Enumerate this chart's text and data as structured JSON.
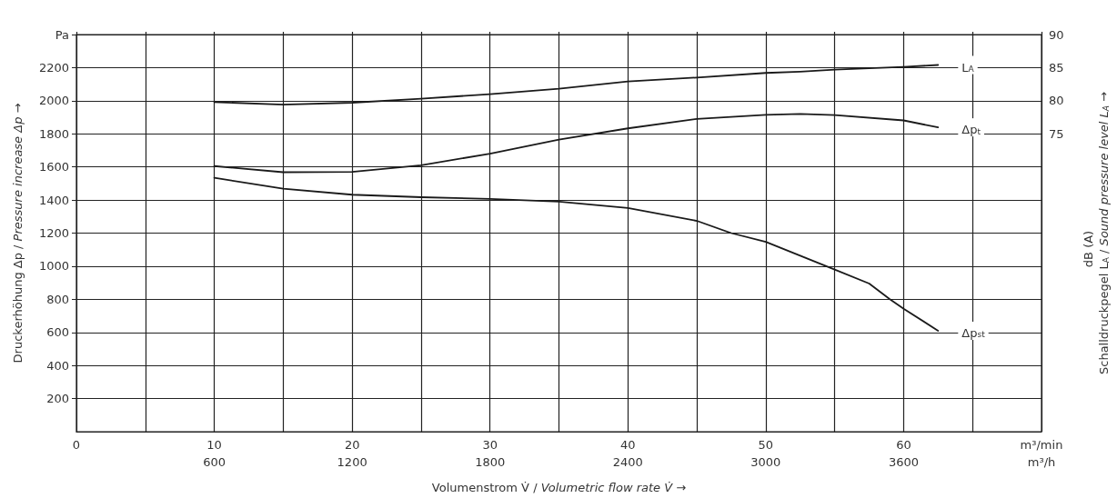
{
  "chart_data": {
    "type": "line",
    "xlabel": "Volumenstrom V̇ / Volumetric flow rate V̇ →",
    "ylabel": "Druckerhöhung Δp / Pressure increase Δp →",
    "y2label": "Schalldruckpegel L$_{A}$ / Sound pressure level L$_{A}$ →",
    "annotations": [
      "dB (A)"
    ],
    "x": [
      10,
      15,
      20,
      25,
      30,
      35,
      40,
      45,
      50,
      52.5,
      55,
      60,
      62.5
    ],
    "series": [
      {
        "name": "L$_{A}$",
        "color": "#1a1a1a",
        "axis": "y2",
        "values": [
          79.8,
          79.4,
          79.7,
          80.3,
          81.0,
          81.8,
          82.9,
          83.5,
          84.2,
          84.4,
          84.7,
          85.1,
          85.4
        ]
      },
      {
        "name": "Δp$_{t}$",
        "color": "#1a1a1a",
        "values": [
          1605,
          1568,
          1570,
          1610,
          1680,
          1765,
          1833,
          1890,
          1915,
          1920,
          1913,
          1881,
          1839
        ]
      },
      {
        "name": "Δp$_{st}$",
        "color": "#1a1a1a",
        "x": [
          10,
          15,
          20,
          25,
          30,
          35,
          40,
          45,
          47.5,
          50,
          52.5,
          55,
          57.5,
          59,
          60,
          62.5
        ],
        "values": [
          1534,
          1468,
          1432,
          1417,
          1407,
          1390,
          1352,
          1274,
          1200,
          1147,
          1063,
          980,
          895,
          800,
          743,
          610
        ]
      }
    ],
    "xlim": [
      0,
      70
    ],
    "xticks": [
      0,
      {
        "value": 5,
        "label": null
      },
      10,
      {
        "value": 15,
        "label": null
      },
      20,
      {
        "value": 25,
        "label": null
      },
      30,
      {
        "value": 35,
        "label": null
      },
      40,
      {
        "value": 45,
        "label": null
      },
      50,
      {
        "value": 55,
        "label": null
      },
      60,
      {
        "value": 65,
        "label": null
      },
      {
        "value": 70,
        "label": "m³/min"
      }
    ],
    "x2lim": [
      0,
      4200
    ],
    "x2ticks": [
      600,
      1200,
      1800,
      2400,
      3000,
      3600,
      {
        "value": 4200,
        "label": "m³/h"
      }
    ],
    "ylim": [
      0,
      2400
    ],
    "yticks": [
      200,
      400,
      600,
      800,
      1000,
      1200,
      1400,
      1600,
      1800,
      2000,
      2200,
      {
        "value": 2400,
        "label": "Pa"
      }
    ],
    "y2lim": [
      30,
      90
    ],
    "y2ticks": [
      75,
      80,
      85,
      90
    ],
    "grid": true,
    "marker": "none",
    "line_style": "solid"
  }
}
